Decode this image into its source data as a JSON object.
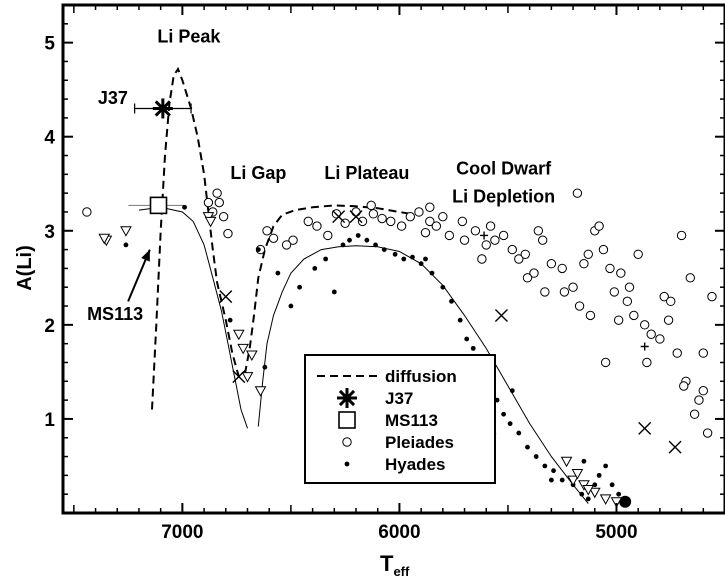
{
  "chart_data": {
    "type": "scatter",
    "title": "",
    "xlabel": "T",
    "xlabel_sub": "eff",
    "ylabel": "A(Li)",
    "x_reversed": true,
    "xlim": [
      7550,
      4500
    ],
    "ylim": [
      0,
      5.4
    ],
    "x_ticks": [
      7000,
      6000,
      5000
    ],
    "y_ticks": [
      1,
      2,
      3,
      4,
      5
    ],
    "grid": false,
    "legend_position": "lower-center",
    "legend": [
      {
        "label": "diffusion",
        "marker": "dash"
      },
      {
        "label": "J37",
        "marker": "asterisk"
      },
      {
        "label": "MS113",
        "marker": "open-square"
      },
      {
        "label": "Pleiades",
        "marker": "open-circle"
      },
      {
        "label": "Hyades",
        "marker": "dot"
      }
    ],
    "annotations": [
      {
        "text": "Li Peak",
        "x": 6970,
        "y": 5.0
      },
      {
        "text": "Li Gap",
        "x": 6650,
        "y": 3.55
      },
      {
        "text": "Li Plateau",
        "x": 6150,
        "y": 3.55
      },
      {
        "text": "Cool Dwarf",
        "x": 5520,
        "y": 3.6
      },
      {
        "text": "Li Depletion",
        "x": 5520,
        "y": 3.3
      },
      {
        "text": "J37",
        "x": 7320,
        "y": 4.35
      },
      {
        "text": "MS113",
        "x": 7310,
        "y": 2.05
      }
    ],
    "arrow": {
      "from": [
        7250,
        2.25
      ],
      "to": [
        7150,
        2.8
      ]
    },
    "series": [
      {
        "name": "J37",
        "marker": "asterisk",
        "points": [
          [
            7090,
            4.3
          ]
        ],
        "x_error": 130
      },
      {
        "name": "MS113",
        "marker": "open-square",
        "points": [
          [
            7110,
            3.27
          ]
        ]
      },
      {
        "name": "Pleiades",
        "marker": "open-circle",
        "points": [
          [
            7440,
            3.2
          ],
          [
            6840,
            3.4
          ],
          [
            6830,
            3.3
          ],
          [
            6860,
            3.2
          ],
          [
            6880,
            3.3
          ],
          [
            6810,
            3.15
          ],
          [
            6790,
            2.97
          ],
          [
            6640,
            2.8
          ],
          [
            6580,
            2.92
          ],
          [
            6490,
            2.9
          ],
          [
            6420,
            3.1
          ],
          [
            6380,
            3.05
          ],
          [
            6330,
            2.95
          ],
          [
            6290,
            3.18
          ],
          [
            6250,
            3.08
          ],
          [
            6200,
            3.2
          ],
          [
            6170,
            3.1
          ],
          [
            6120,
            3.18
          ],
          [
            6080,
            3.13
          ],
          [
            6040,
            3.1
          ],
          [
            5990,
            3.05
          ],
          [
            5950,
            3.15
          ],
          [
            5910,
            3.2
          ],
          [
            5880,
            2.98
          ],
          [
            5860,
            3.1
          ],
          [
            5830,
            3.05
          ],
          [
            5800,
            3.15
          ],
          [
            5770,
            2.95
          ],
          [
            5700,
            2.9
          ],
          [
            5650,
            3.0
          ],
          [
            5600,
            2.85
          ],
          [
            5560,
            2.9
          ],
          [
            5520,
            2.95
          ],
          [
            5450,
            2.7
          ],
          [
            5420,
            2.75
          ],
          [
            5380,
            2.55
          ],
          [
            5340,
            2.9
          ],
          [
            5300,
            2.65
          ],
          [
            5250,
            2.6
          ],
          [
            5200,
            2.4
          ],
          [
            5170,
            2.2
          ],
          [
            5130,
            2.75
          ],
          [
            5100,
            3.0
          ],
          [
            5060,
            2.8
          ],
          [
            5030,
            2.6
          ],
          [
            5010,
            2.35
          ],
          [
            4980,
            2.55
          ],
          [
            4950,
            2.25
          ],
          [
            4920,
            2.1
          ],
          [
            4900,
            2.75
          ],
          [
            4870,
            2.0
          ],
          [
            4840,
            1.9
          ],
          [
            4800,
            1.85
          ],
          [
            4780,
            2.3
          ],
          [
            4750,
            2.25
          ],
          [
            4720,
            1.7
          ],
          [
            4700,
            2.95
          ],
          [
            4680,
            1.4
          ],
          [
            4660,
            2.5
          ],
          [
            4640,
            1.05
          ],
          [
            4620,
            1.2
          ],
          [
            4600,
            1.3
          ],
          [
            4580,
            0.85
          ],
          [
            5180,
            3.4
          ],
          [
            5080,
            3.05
          ],
          [
            5360,
            3.0
          ],
          [
            5580,
            3.05
          ],
          [
            5710,
            3.1
          ],
          [
            5860,
            3.25
          ],
          [
            6130,
            3.27
          ],
          [
            6520,
            2.85
          ],
          [
            6610,
            3.0
          ],
          [
            5150,
            2.65
          ],
          [
            5480,
            2.8
          ],
          [
            5620,
            2.7
          ],
          [
            5050,
            1.6
          ],
          [
            4860,
            1.6
          ],
          [
            4760,
            2.05
          ],
          [
            5240,
            2.35
          ],
          [
            5410,
            2.5
          ],
          [
            5330,
            2.35
          ],
          [
            5120,
            2.1
          ],
          [
            4990,
            2.05
          ],
          [
            4940,
            2.4
          ],
          [
            4690,
            1.35
          ],
          [
            4560,
            2.3
          ],
          [
            4600,
            1.7
          ]
        ]
      },
      {
        "name": "Hyades",
        "marker": "dot",
        "points": [
          [
            7260,
            2.85
          ],
          [
            6990,
            3.25
          ],
          [
            6650,
            2.8
          ],
          [
            6560,
            2.55
          ],
          [
            6500,
            2.2
          ],
          [
            6460,
            2.4
          ],
          [
            6390,
            2.6
          ],
          [
            6340,
            2.7
          ],
          [
            6300,
            2.35
          ],
          [
            6260,
            2.85
          ],
          [
            6230,
            2.9
          ],
          [
            6190,
            2.95
          ],
          [
            6150,
            2.9
          ],
          [
            6110,
            2.85
          ],
          [
            6070,
            2.8
          ],
          [
            6020,
            2.75
          ],
          [
            5980,
            2.7
          ],
          [
            5940,
            2.72
          ],
          [
            5900,
            2.65
          ],
          [
            5850,
            2.55
          ],
          [
            5800,
            2.4
          ],
          [
            5760,
            2.25
          ],
          [
            5720,
            2.05
          ],
          [
            5690,
            1.85
          ],
          [
            5660,
            1.75
          ],
          [
            5620,
            1.5
          ],
          [
            5590,
            1.45
          ],
          [
            5550,
            1.2
          ],
          [
            5520,
            1.05
          ],
          [
            5490,
            0.95
          ],
          [
            5450,
            0.85
          ],
          [
            5410,
            0.7
          ],
          [
            5370,
            0.6
          ],
          [
            5330,
            0.5
          ],
          [
            5290,
            0.45
          ],
          [
            5250,
            0.35
          ],
          [
            5200,
            0.3
          ],
          [
            5160,
            0.2
          ],
          [
            5130,
            0.15
          ],
          [
            5100,
            0.3
          ],
          [
            5080,
            0.4
          ],
          [
            5050,
            0.5
          ],
          [
            5020,
            0.3
          ],
          [
            4990,
            0.2
          ],
          [
            5150,
            0.55
          ],
          [
            5300,
            0.35
          ],
          [
            6620,
            1.55
          ],
          [
            6780,
            2.05
          ],
          [
            5880,
            2.7
          ],
          [
            5480,
            1.3
          ],
          [
            5580,
            1.6
          ]
        ]
      },
      {
        "name": "Hyades-detection",
        "marker": "large-dot",
        "points": [
          [
            4960,
            0.12
          ]
        ]
      },
      {
        "name": "Upper limits",
        "marker": "down-triangle",
        "points": [
          [
            7350,
            2.9
          ],
          [
            7360,
            2.92
          ],
          [
            7260,
            3.0
          ],
          [
            6880,
            3.15
          ],
          [
            6870,
            3.1
          ],
          [
            6720,
            1.75
          ],
          [
            6700,
            1.45
          ],
          [
            6680,
            1.68
          ],
          [
            6640,
            1.3
          ],
          [
            6740,
            1.9
          ],
          [
            5580,
            0.8
          ],
          [
            5230,
            0.55
          ],
          [
            5200,
            0.35
          ],
          [
            5150,
            0.3
          ],
          [
            5100,
            0.22
          ],
          [
            5050,
            0.15
          ],
          [
            5000,
            0.12
          ],
          [
            5180,
            0.42
          ],
          [
            5130,
            0.25
          ]
        ]
      },
      {
        "name": "Crosses",
        "marker": "x-cross",
        "points": [
          [
            6800,
            2.3
          ],
          [
            6740,
            1.45
          ],
          [
            6280,
            3.15
          ],
          [
            6200,
            3.15
          ],
          [
            5530,
            2.1
          ],
          [
            4870,
            0.9
          ],
          [
            4730,
            0.7
          ]
        ]
      },
      {
        "name": "Plus",
        "marker": "plus",
        "points": [
          [
            4870,
            1.77
          ],
          [
            5610,
            2.95
          ]
        ]
      }
    ],
    "curves": [
      {
        "name": "diffusion",
        "style": "dashed",
        "points": [
          [
            7140,
            1.1
          ],
          [
            7120,
            2.0
          ],
          [
            7100,
            3.0
          ],
          [
            7080,
            3.8
          ],
          [
            7060,
            4.35
          ],
          [
            7040,
            4.65
          ],
          [
            7020,
            4.72
          ],
          [
            7000,
            4.6
          ],
          [
            6960,
            4.3
          ],
          [
            6930,
            4.0
          ],
          [
            6900,
            3.6
          ],
          [
            6880,
            3.2
          ],
          [
            6860,
            2.8
          ],
          [
            6840,
            2.45
          ],
          [
            6800,
            2.05
          ],
          [
            6770,
            1.7
          ],
          [
            6740,
            1.45
          ],
          [
            6710,
            1.5
          ],
          [
            6690,
            1.75
          ],
          [
            6670,
            2.1
          ],
          [
            6650,
            2.5
          ],
          [
            6620,
            2.8
          ],
          [
            6580,
            3.05
          ],
          [
            6540,
            3.17
          ],
          [
            6480,
            3.22
          ],
          [
            6400,
            3.25
          ],
          [
            6300,
            3.27
          ],
          [
            6200,
            3.26
          ],
          [
            6100,
            3.24
          ],
          [
            6000,
            3.2
          ],
          [
            5950,
            3.18
          ]
        ]
      },
      {
        "name": "model-gap",
        "style": "solid",
        "points": [
          [
            7200,
            3.22
          ],
          [
            7100,
            3.25
          ],
          [
            7000,
            3.2
          ],
          [
            6950,
            3.1
          ],
          [
            6900,
            2.85
          ],
          [
            6860,
            2.5
          ],
          [
            6820,
            2.15
          ],
          [
            6790,
            1.8
          ],
          [
            6760,
            1.45
          ],
          [
            6730,
            1.1
          ],
          [
            6700,
            0.9
          ]
        ]
      },
      {
        "name": "model-plateau",
        "style": "solid",
        "points": [
          [
            6650,
            0.92
          ],
          [
            6630,
            1.4
          ],
          [
            6610,
            1.8
          ],
          [
            6580,
            2.1
          ],
          [
            6540,
            2.35
          ],
          [
            6500,
            2.55
          ],
          [
            6440,
            2.7
          ],
          [
            6360,
            2.8
          ],
          [
            6280,
            2.83
          ],
          [
            6200,
            2.84
          ],
          [
            6100,
            2.83
          ],
          [
            6000,
            2.78
          ],
          [
            5900,
            2.65
          ],
          [
            5800,
            2.42
          ],
          [
            5700,
            2.1
          ],
          [
            5600,
            1.75
          ],
          [
            5500,
            1.35
          ],
          [
            5400,
            0.95
          ],
          [
            5300,
            0.6
          ],
          [
            5200,
            0.3
          ],
          [
            5130,
            0.1
          ]
        ]
      }
    ]
  }
}
